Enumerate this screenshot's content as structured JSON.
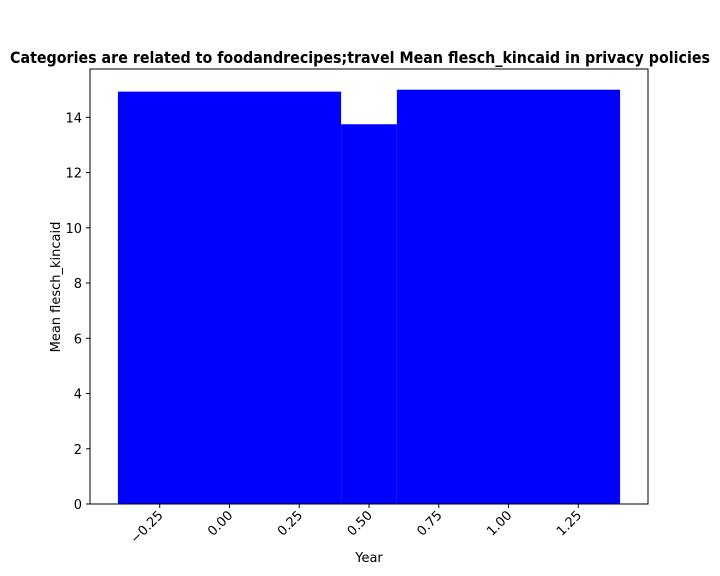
{
  "chart_data": {
    "type": "bar",
    "title": "Categories are related to foodandrecipes;travel Mean flesch_kincaid in privacy policies",
    "xlabel": "Year",
    "ylabel": "Mean flesch_kincaid",
    "bar_color": "#0000ff",
    "grid": false,
    "legend": "none",
    "xlim": [
      -0.5,
      1.5
    ],
    "ylim": [
      0,
      15.75
    ],
    "x_ticks": [
      -0.25,
      0.0,
      0.25,
      0.5,
      0.75,
      1.0,
      1.25
    ],
    "x_tick_labels": [
      "−0.25",
      "0.00",
      "0.25",
      "0.50",
      "0.75",
      "1.00",
      "1.25"
    ],
    "y_ticks": [
      0,
      2,
      4,
      6,
      8,
      10,
      12,
      14
    ],
    "y_tick_labels": [
      "0",
      "2",
      "4",
      "6",
      "8",
      "10",
      "12",
      "14"
    ],
    "bars": [
      {
        "x_start": -0.4,
        "x_end": 0.4,
        "value": 14.93
      },
      {
        "x_start": 0.4,
        "x_end": 0.6,
        "value": 13.75
      },
      {
        "x_start": 0.6,
        "x_end": 1.4,
        "value": 15.0
      }
    ]
  }
}
